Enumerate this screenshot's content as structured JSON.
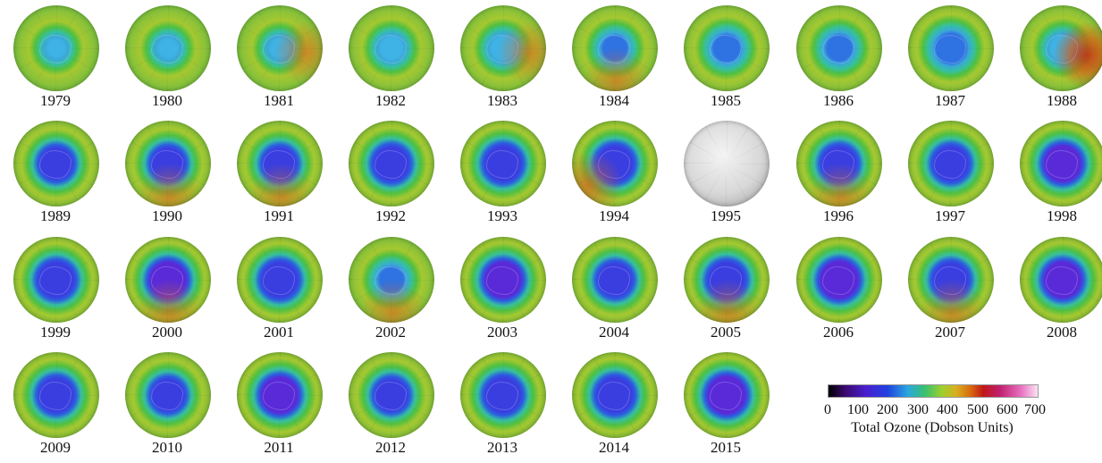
{
  "maps": [
    {
      "year": "1979",
      "hole": 0.05,
      "ring": "mild"
    },
    {
      "year": "1980",
      "hole": 0.08,
      "ring": "mild"
    },
    {
      "year": "1981",
      "hole": 0.1,
      "ring": "orange-right"
    },
    {
      "year": "1982",
      "hole": 0.25,
      "ring": "mild"
    },
    {
      "year": "1983",
      "hole": 0.3,
      "ring": "orange-right"
    },
    {
      "year": "1984",
      "hole": 0.35,
      "ring": "orange-bottom"
    },
    {
      "year": "1985",
      "hole": 0.45,
      "ring": "mild"
    },
    {
      "year": "1986",
      "hole": 0.4,
      "ring": "mild"
    },
    {
      "year": "1987",
      "hole": 0.6,
      "ring": "mild"
    },
    {
      "year": "1988",
      "hole": 0.3,
      "ring": "red-right"
    },
    {
      "year": "1989",
      "hole": 0.65,
      "ring": "mild"
    },
    {
      "year": "1990",
      "hole": 0.65,
      "ring": "orange-bottom"
    },
    {
      "year": "1991",
      "hole": 0.65,
      "ring": "orange-bottom"
    },
    {
      "year": "1992",
      "hole": 0.75,
      "ring": "mild"
    },
    {
      "year": "1993",
      "hole": 0.8,
      "ring": "mild"
    },
    {
      "year": "1994",
      "hole": 0.8,
      "ring": "orange-left"
    },
    {
      "year": "1995",
      "hole": 0,
      "ring": "nodata"
    },
    {
      "year": "1996",
      "hole": 0.75,
      "ring": "orange-bottom"
    },
    {
      "year": "1997",
      "hole": 0.75,
      "ring": "mild"
    },
    {
      "year": "1998",
      "hole": 0.85,
      "ring": "mild"
    },
    {
      "year": "1999",
      "hole": 0.8,
      "ring": "mild"
    },
    {
      "year": "2000",
      "hole": 0.85,
      "ring": "orange-bottom"
    },
    {
      "year": "2001",
      "hole": 0.8,
      "ring": "mild"
    },
    {
      "year": "2002",
      "hole": 0.35,
      "ring": "orange-bottom"
    },
    {
      "year": "2003",
      "hole": 0.85,
      "ring": "mild"
    },
    {
      "year": "2004",
      "hole": 0.7,
      "ring": "mild"
    },
    {
      "year": "2005",
      "hole": 0.8,
      "ring": "orange-bottom"
    },
    {
      "year": "2006",
      "hole": 0.9,
      "ring": "mild"
    },
    {
      "year": "2007",
      "hole": 0.75,
      "ring": "orange-bottom"
    },
    {
      "year": "2008",
      "hole": 0.85,
      "ring": "mild"
    },
    {
      "year": "2009",
      "hole": 0.75,
      "ring": "mild"
    },
    {
      "year": "2010",
      "hole": 0.65,
      "ring": "mild"
    },
    {
      "year": "2011",
      "hole": 0.85,
      "ring": "mild"
    },
    {
      "year": "2012",
      "hole": 0.65,
      "ring": "mild"
    },
    {
      "year": "2013",
      "hole": 0.8,
      "ring": "mild"
    },
    {
      "year": "2014",
      "hole": 0.8,
      "ring": "mild"
    },
    {
      "year": "2015",
      "hole": 0.9,
      "ring": "mild"
    }
  ],
  "legend": {
    "ticks": [
      "0",
      "100",
      "200",
      "300",
      "400",
      "500",
      "600",
      "700"
    ],
    "title": "Total Ozone (Dobson Units)"
  }
}
